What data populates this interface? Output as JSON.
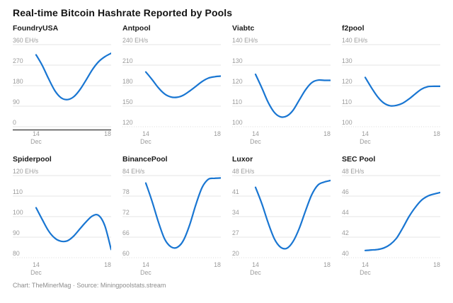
{
  "header": {
    "title": "Real-time Bitcoin Hashrate Reported by Pools"
  },
  "footer": {
    "credit": "Chart: TheMinerMag · Source: Miningpoolstats.stream"
  },
  "colors": {
    "line": "#1976d2",
    "grid": "#e6e6e6",
    "grid_bottom": "#d9d9d9",
    "zero_baseline": "#4d4d4d",
    "tick_text": "#9b9b9b",
    "title_text": "#141414"
  },
  "chart_data": [
    {
      "type": "line",
      "title": "FoundryUSA",
      "unit": "EH/s",
      "ylim": [
        0,
        360
      ],
      "y_ticks": [
        360,
        270,
        180,
        90,
        0
      ],
      "y_tick_labels": [
        "360 EH/s",
        "270",
        "180",
        "90",
        "0"
      ],
      "x_range": [
        "Dec 14",
        "Dec 18"
      ],
      "x_tick_labels": [
        "14",
        "18"
      ],
      "x_sub_label": "Dec",
      "baseline_zero": true,
      "values": [
        315,
        268,
        210,
        158,
        127,
        119,
        131,
        162,
        205,
        250,
        285,
        307,
        322
      ]
    },
    {
      "type": "line",
      "title": "Antpool",
      "unit": "EH/s",
      "ylim": [
        120,
        240
      ],
      "y_ticks": [
        240,
        210,
        180,
        150,
        120
      ],
      "y_tick_labels": [
        "240 EH/s",
        "210",
        "180",
        "150",
        "120"
      ],
      "x_range": [
        "Dec 14",
        "Dec 18"
      ],
      "x_tick_labels": [
        "14",
        "18"
      ],
      "x_sub_label": "Dec",
      "baseline_zero": false,
      "values": [
        200,
        189,
        177,
        168,
        163.5,
        163,
        166,
        172,
        179,
        186,
        191,
        193,
        194
      ]
    },
    {
      "type": "line",
      "title": "Viabtc",
      "unit": "EH/s",
      "ylim": [
        100,
        140
      ],
      "y_ticks": [
        140,
        130,
        120,
        110,
        100
      ],
      "y_tick_labels": [
        "140 EH/s",
        "130",
        "120",
        "110",
        "100"
      ],
      "x_range": [
        "Dec 14",
        "Dec 18"
      ],
      "x_tick_labels": [
        "14",
        "18"
      ],
      "x_sub_label": "Dec",
      "baseline_zero": false,
      "values": [
        125.5,
        119,
        112,
        107,
        104.8,
        105.2,
        108,
        113,
        118,
        121.5,
        122.7,
        122.6,
        122.6
      ]
    },
    {
      "type": "line",
      "title": "f2pool",
      "unit": "EH/s",
      "ylim": [
        100,
        140
      ],
      "y_ticks": [
        140,
        130,
        120,
        110,
        100
      ],
      "y_tick_labels": [
        "140 EH/s",
        "130",
        "120",
        "110",
        "100"
      ],
      "x_range": [
        "Dec 14",
        "Dec 18"
      ],
      "x_tick_labels": [
        "14",
        "18"
      ],
      "x_sub_label": "Dec",
      "baseline_zero": false,
      "values": [
        124,
        119,
        114.5,
        111.5,
        110.2,
        110.4,
        111.5,
        113.5,
        116,
        118.3,
        119.5,
        119.7,
        119.7
      ]
    },
    {
      "type": "line",
      "title": "Spiderpool",
      "unit": "EH/s",
      "ylim": [
        80,
        120
      ],
      "y_ticks": [
        120,
        110,
        100,
        90,
        80
      ],
      "y_tick_labels": [
        "120 EH/s",
        "110",
        "100",
        "90",
        "80"
      ],
      "x_range": [
        "Dec 14",
        "Dec 18"
      ],
      "x_tick_labels": [
        "14",
        "18"
      ],
      "x_sub_label": "Dec",
      "baseline_zero": false,
      "values": [
        104.3,
        98.5,
        93,
        89.5,
        88,
        88.2,
        90.5,
        94,
        97.5,
        100.3,
        100.6,
        95.5,
        84
      ]
    },
    {
      "type": "line",
      "title": "BinancePool",
      "unit": "EH/s",
      "ylim": [
        60,
        84
      ],
      "y_ticks": [
        84,
        78,
        72,
        66,
        60
      ],
      "y_tick_labels": [
        "84 EH/s",
        "78",
        "72",
        "66",
        "60"
      ],
      "x_range": [
        "Dec 14",
        "Dec 18"
      ],
      "x_tick_labels": [
        "14",
        "18"
      ],
      "x_sub_label": "Dec",
      "baseline_zero": false,
      "values": [
        81.8,
        76.5,
        70.5,
        65.5,
        63.2,
        63,
        65,
        69.5,
        75.5,
        80.5,
        82.9,
        83.2,
        83.3
      ]
    },
    {
      "type": "line",
      "title": "Luxor",
      "unit": "EH/s",
      "ylim": [
        20,
        48
      ],
      "y_ticks": [
        48,
        41,
        34,
        27,
        20
      ],
      "y_tick_labels": [
        "48 EH/s",
        "41",
        "34",
        "27",
        "20"
      ],
      "x_range": [
        "Dec 14",
        "Dec 18"
      ],
      "x_tick_labels": [
        "14",
        "18"
      ],
      "x_sub_label": "Dec",
      "baseline_zero": false,
      "values": [
        44,
        38.5,
        32,
        26.5,
        23.6,
        23.2,
        25.5,
        30,
        36,
        41.5,
        44.8,
        45.8,
        46.3
      ]
    },
    {
      "type": "line",
      "title": "SEC Pool",
      "unit": "EH/s",
      "ylim": [
        40,
        48
      ],
      "y_ticks": [
        48,
        46,
        44,
        42,
        40
      ],
      "y_tick_labels": [
        "48 EH/s",
        "46",
        "44",
        "42",
        "40"
      ],
      "x_range": [
        "Dec 14",
        "Dec 18"
      ],
      "x_tick_labels": [
        "14",
        "18"
      ],
      "x_sub_label": "Dec",
      "baseline_zero": false,
      "values": [
        40.7,
        40.75,
        40.8,
        40.95,
        41.3,
        41.9,
        42.9,
        44,
        44.9,
        45.6,
        46,
        46.2,
        46.35
      ]
    }
  ]
}
